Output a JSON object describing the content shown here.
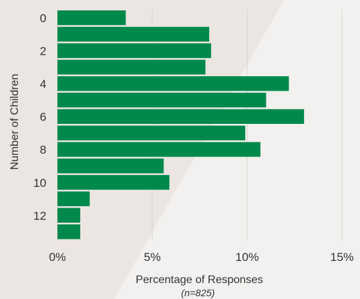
{
  "chart_data": {
    "type": "bar",
    "orientation": "horizontal",
    "categories": [
      "0",
      "1",
      "2",
      "3",
      "4",
      "5",
      "6",
      "7",
      "8",
      "9",
      "10",
      "11",
      "12",
      "13"
    ],
    "y_tick_labels": [
      "0",
      "2",
      "4",
      "6",
      "8",
      "10",
      "12"
    ],
    "values": [
      3.6,
      8.0,
      8.1,
      7.8,
      12.2,
      11.0,
      13.0,
      9.9,
      10.7,
      5.6,
      5.9,
      1.7,
      1.2,
      1.2
    ],
    "xlabel": "Percentage of Responses",
    "xlabel_note": "(n=825)",
    "ylabel": "Number of Children",
    "xlim": [
      0,
      15
    ],
    "x_ticks": [
      {
        "value": 0,
        "label": "0%"
      },
      {
        "value": 5,
        "label": "5%"
      },
      {
        "value": 10,
        "label": "10%"
      },
      {
        "value": 15,
        "label": "15%"
      }
    ],
    "grid": "vertical",
    "bar_color": "#00894a",
    "grid_color": "#d6d2ce",
    "background_color": "#f3f1ef",
    "background_accent_color": "#ebe6e2"
  }
}
